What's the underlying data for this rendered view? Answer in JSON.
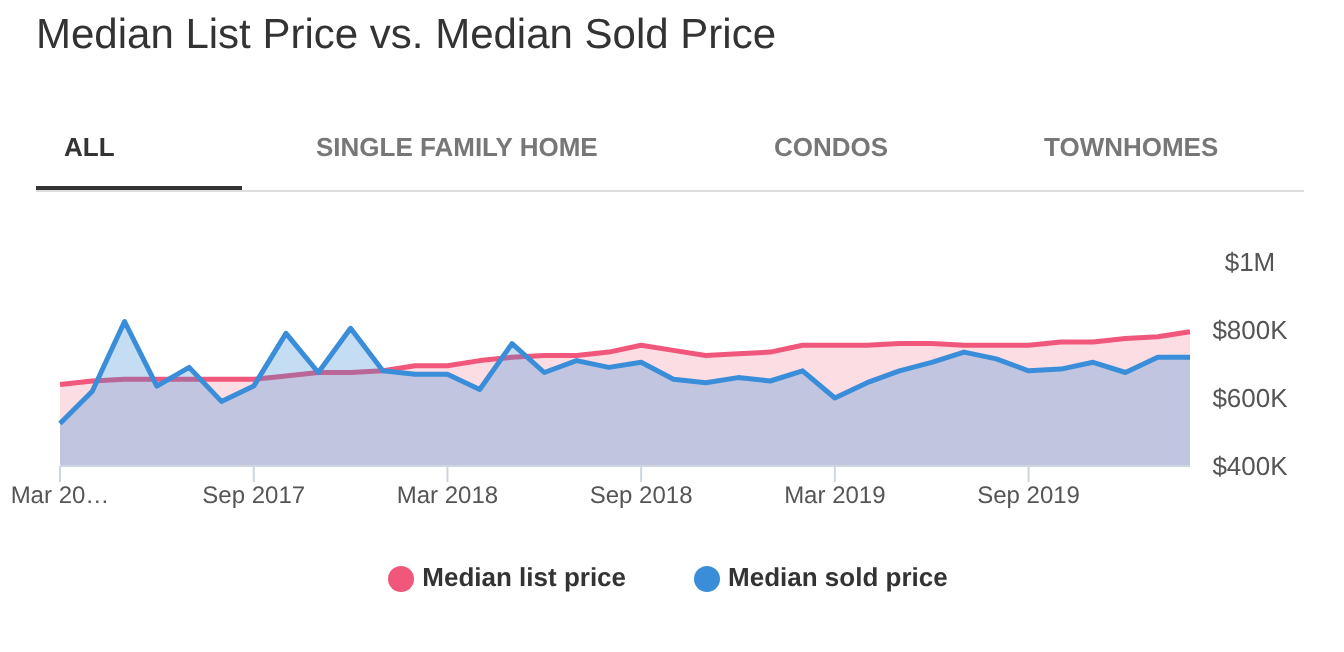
{
  "chart_data": {
    "type": "area",
    "title": "Median List Price vs. Median Sold Price",
    "annotations": [
      "ALL",
      "SINGLE FAMILY HOME",
      "CONDOS",
      "TOWNHOMES"
    ],
    "categories": [
      "Mar 20…",
      null,
      null,
      null,
      null,
      null,
      "Sep 2017",
      null,
      null,
      null,
      null,
      null,
      "Mar 2018",
      null,
      null,
      null,
      null,
      null,
      "Sep 2018",
      null,
      null,
      null,
      null,
      null,
      "Mar 2019",
      null,
      null,
      null,
      null,
      null,
      "Sep 2019",
      null,
      null,
      null,
      null,
      null
    ],
    "series": [
      {
        "name": "Median list price",
        "color": "#f0577a",
        "values": [
          640000,
          650000,
          655000,
          655000,
          655000,
          655000,
          655000,
          665000,
          675000,
          675000,
          680000,
          695000,
          695000,
          710000,
          720000,
          725000,
          725000,
          735000,
          755000,
          740000,
          725000,
          730000,
          735000,
          755000,
          755000,
          755000,
          760000,
          760000,
          755000,
          755000,
          755000,
          765000,
          765000,
          775000,
          780000,
          795000
        ]
      },
      {
        "name": "Median sold price",
        "color": "#3a8dd8",
        "values": [
          525000,
          620000,
          825000,
          635000,
          690000,
          590000,
          635000,
          790000,
          675000,
          805000,
          680000,
          670000,
          670000,
          625000,
          760000,
          675000,
          710000,
          690000,
          705000,
          655000,
          645000,
          660000,
          650000,
          680000,
          600000,
          645000,
          680000,
          705000,
          735000,
          715000,
          680000,
          685000,
          705000,
          675000,
          720000,
          720000
        ]
      }
    ],
    "ylim": [
      400000,
      1000000
    ],
    "yticks": [
      {
        "value": 400000,
        "label": "$400K"
      },
      {
        "value": 600000,
        "label": "$600K"
      },
      {
        "value": 800000,
        "label": "$800K"
      },
      {
        "value": 1000000,
        "label": "$1M"
      }
    ],
    "legend": "bottom"
  }
}
